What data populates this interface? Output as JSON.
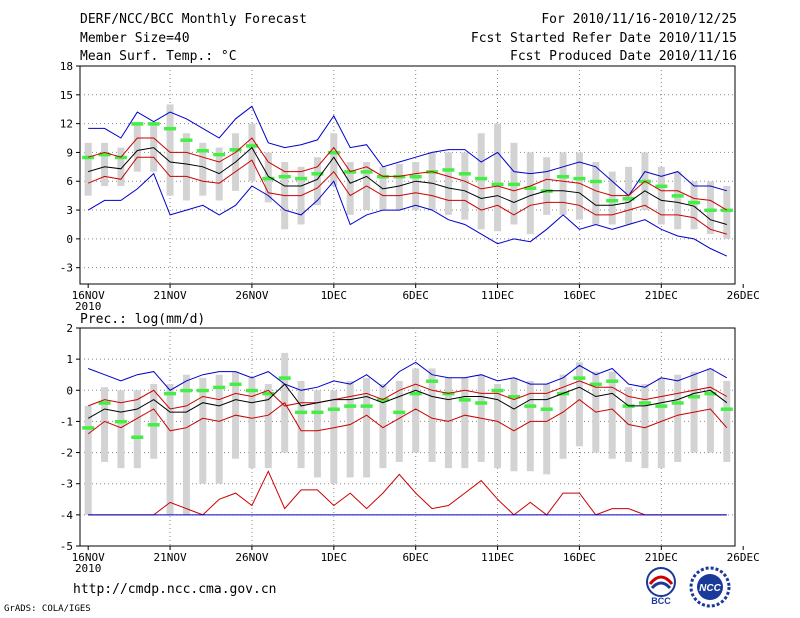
{
  "header": {
    "left": [
      "DERF/NCC/BCC Monthly Forecast",
      "Member Size=40",
      "Mean Surf. Temp.: °C"
    ],
    "right": [
      "For 2010/11/16-2010/12/25",
      "Fcst Started Refer Date 2010/11/15",
      "Fcst Produced Date 2010/11/16"
    ]
  },
  "footer": {
    "url": "http://cmdp.ncc.cma.gov.cn",
    "credit": "GrADS: COLA/IGES"
  },
  "logos": [
    {
      "name": "bcc-logo",
      "text": "BCC"
    },
    {
      "name": "ncc-logo",
      "text": "NCC"
    }
  ],
  "colors": {
    "ensemble_max": "#0000cc",
    "ensemble_min": "#0000cc",
    "upper_spread": "#cc0000",
    "lower_spread": "#cc0000",
    "ensemble_mean": "#000000",
    "observed_climate": "#44ee44",
    "boxes": "#d3d3d3",
    "grid": "#888888"
  },
  "chart_data": [
    {
      "type": "line",
      "title": "Mean Surf. Temp.: °C",
      "days": 40,
      "x_ticks": [
        "16NOV",
        "21NOV",
        "26NOV",
        "1DEC",
        "6DEC",
        "11DEC",
        "16DEC",
        "21DEC",
        "26DEC"
      ],
      "x_year_label": "2010",
      "ylim": [
        -4.7,
        18
      ],
      "yticks": [
        -3,
        0,
        3,
        6,
        9,
        12,
        15,
        18
      ],
      "series": [
        {
          "name": "max",
          "color": "blue",
          "values": [
            11.5,
            11.5,
            10.5,
            13.2,
            12.2,
            13.2,
            12.5,
            11.5,
            10.5,
            12.5,
            13.8,
            10,
            9.5,
            9.8,
            10.3,
            12.8,
            9.5,
            9.8,
            7.5,
            8,
            8.5,
            9,
            9.3,
            9.3,
            8,
            9,
            7,
            6.8,
            7,
            7.5,
            8,
            7.5,
            6,
            4.5,
            7,
            6.5,
            7,
            5.5,
            5.5,
            5
          ]
        },
        {
          "name": "upper",
          "color": "red",
          "values": [
            8.5,
            9,
            8.5,
            10.5,
            10.5,
            9,
            9,
            8.5,
            8,
            9,
            10.5,
            8,
            7,
            7,
            7.5,
            9.5,
            7,
            7.5,
            6.5,
            6.5,
            6.8,
            7,
            6.5,
            6,
            5.2,
            5.5,
            5,
            5.5,
            6.2,
            6,
            5.8,
            5,
            4.5,
            4.5,
            6,
            5,
            5,
            4.2,
            4,
            3
          ]
        },
        {
          "name": "mean",
          "color": "black",
          "values": [
            7,
            7.5,
            7.3,
            9.2,
            9.5,
            8,
            7.8,
            7.5,
            6.8,
            8,
            9.5,
            6.5,
            5.5,
            5.5,
            6.2,
            8.5,
            5.8,
            6.5,
            5.2,
            5.5,
            6,
            5.8,
            5.3,
            5,
            4.2,
            4.5,
            3.8,
            4.5,
            5,
            5,
            4.8,
            3.5,
            3.5,
            3.8,
            5,
            4,
            3.8,
            3.4,
            2,
            1.5
          ]
        },
        {
          "name": "lower",
          "color": "red",
          "values": [
            5.8,
            6.5,
            6.2,
            8.5,
            8.5,
            6.5,
            6.5,
            6,
            5.8,
            7,
            8.2,
            4.8,
            4.5,
            4.5,
            5.3,
            7,
            4.5,
            5.5,
            4.5,
            4.5,
            4.8,
            4.5,
            4,
            4,
            3,
            3.5,
            2.5,
            3.5,
            3.8,
            3.8,
            3.5,
            2.5,
            2.5,
            3,
            3.5,
            2.5,
            2.5,
            2.2,
            1,
            0.5
          ]
        },
        {
          "name": "min",
          "color": "blue",
          "values": [
            3,
            4,
            4,
            5.2,
            6.8,
            2.5,
            3,
            3.5,
            2.5,
            3.5,
            5.5,
            4.5,
            3,
            2.5,
            4,
            6,
            1.5,
            2.5,
            3,
            3,
            3.5,
            3,
            2,
            1.5,
            0.5,
            -0.5,
            0,
            -0.3,
            1,
            2.5,
            1,
            1.5,
            1,
            1.5,
            2,
            1,
            0.3,
            0,
            -1,
            -1.8
          ]
        },
        {
          "name": "green_marks",
          "color": "green",
          "values": [
            8.5,
            8.8,
            8.5,
            12,
            12,
            11.5,
            10.3,
            9.2,
            8.8,
            9.3,
            9.7,
            6.3,
            6.5,
            6.3,
            6.8,
            9,
            7,
            7,
            6.5,
            6.5,
            6.5,
            7,
            7.2,
            6.8,
            6.3,
            5.7,
            5.7,
            5.3,
            5,
            6.5,
            6.3,
            6,
            4,
            4.2,
            6,
            5.5,
            4.5,
            3.8,
            3,
            3
          ]
        },
        {
          "name": "box_high",
          "values": [
            10,
            10,
            9.5,
            12,
            12,
            14,
            11,
            10,
            9.5,
            11,
            12,
            9,
            8,
            7.5,
            8.5,
            11,
            8,
            8,
            7.5,
            7.8,
            8,
            9,
            9,
            9,
            11,
            12,
            10,
            9,
            8.5,
            9,
            9,
            8,
            7,
            7.5,
            9,
            7.5,
            7,
            6,
            6,
            5.5
          ]
        },
        {
          "name": "box_low",
          "values": [
            4.5,
            5.5,
            5.5,
            7,
            7,
            4.5,
            4,
            4.5,
            4,
            5,
            6,
            3.8,
            1,
            1.5,
            3.5,
            5.5,
            2.5,
            3,
            3,
            3,
            3,
            3,
            2.5,
            2,
            1,
            0.8,
            1.5,
            0.5,
            2.5,
            2.5,
            2,
            1.5,
            1.5,
            1.5,
            3,
            1.5,
            1,
            1,
            0.5,
            0
          ]
        }
      ]
    },
    {
      "type": "line",
      "title": "Prec.: log(mm/d)",
      "days": 40,
      "x_ticks": [
        "16NOV",
        "21NOV",
        "26NOV",
        "1DEC",
        "6DEC",
        "11DEC",
        "16DEC",
        "21DEC",
        "26DEC"
      ],
      "x_year_label": "2010",
      "ylim": [
        -5,
        2
      ],
      "yticks": [
        -5,
        -4,
        -3,
        -2,
        -1,
        0,
        1,
        2
      ],
      "series": [
        {
          "name": "max",
          "color": "blue",
          "values": [
            0.7,
            0.5,
            0.3,
            0.5,
            0.6,
            0,
            0.3,
            0.5,
            0.6,
            0.6,
            0.4,
            0.6,
            0.2,
            0,
            0.1,
            0.3,
            0.2,
            0.5,
            0.1,
            0.6,
            0.9,
            0.5,
            0.4,
            0.4,
            0.5,
            0.3,
            0.4,
            0.2,
            0.2,
            0.4,
            0.8,
            0.5,
            0.7,
            0.2,
            0.1,
            0.4,
            0.3,
            0.5,
            0.7,
            0.4
          ]
        },
        {
          "name": "upper",
          "color": "red",
          "values": [
            -0.5,
            -0.3,
            -0.4,
            -0.3,
            0,
            -0.6,
            -0.5,
            -0.2,
            -0.3,
            -0.1,
            -0.2,
            0,
            -0.5,
            -0.4,
            -0.4,
            -0.3,
            -0.2,
            -0.1,
            -0.3,
            0,
            0.2,
            0,
            -0.1,
            0,
            -0.1,
            -0.1,
            -0.3,
            -0.1,
            -0.1,
            0.1,
            0.3,
            0.1,
            0.1,
            -0.2,
            -0.3,
            -0.2,
            -0.1,
            0,
            0.1,
            -0.2
          ]
        },
        {
          "name": "mean",
          "color": "black",
          "values": [
            -0.9,
            -0.6,
            -0.7,
            -0.6,
            -0.3,
            -0.7,
            -0.7,
            -0.4,
            -0.5,
            -0.3,
            -0.4,
            -0.3,
            0.2,
            -0.5,
            -0.4,
            -0.3,
            -0.3,
            -0.2,
            -0.4,
            -0.2,
            0,
            -0.2,
            -0.3,
            -0.2,
            -0.2,
            -0.3,
            -0.6,
            -0.3,
            -0.3,
            -0.1,
            0.1,
            -0.2,
            -0.1,
            -0.5,
            -0.5,
            -0.4,
            -0.3,
            -0.1,
            0,
            -0.4
          ]
        },
        {
          "name": "lower",
          "color": "red",
          "values": [
            -1.4,
            -1,
            -1.2,
            -0.9,
            -0.6,
            -1.3,
            -1.2,
            -0.9,
            -1,
            -0.8,
            -0.9,
            -0.8,
            -0.4,
            -1.3,
            -1.3,
            -1.2,
            -1.1,
            -0.8,
            -1.2,
            -0.9,
            -0.6,
            -0.9,
            -1,
            -0.8,
            -0.9,
            -1,
            -1.3,
            -1,
            -1,
            -0.7,
            -0.3,
            -0.7,
            -0.6,
            -1.1,
            -1.2,
            -1,
            -0.8,
            -0.7,
            -0.6,
            -1.2
          ]
        },
        {
          "name": "min_red",
          "color": "red",
          "values": [
            -4,
            -4,
            -4,
            -4,
            -4,
            -3.6,
            -3.8,
            -4,
            -3.5,
            -3.3,
            -3.7,
            -2.6,
            -3.8,
            -3.2,
            -3.2,
            -3.7,
            -3.3,
            -3.8,
            -3.3,
            -2.7,
            -3.3,
            -3.8,
            -3.7,
            -3.3,
            -2.9,
            -3.5,
            -4,
            -3.6,
            -4,
            -3.3,
            -3.3,
            -4,
            -3.8,
            -3.8,
            -4,
            -4,
            -4,
            -4,
            -4,
            -4
          ]
        },
        {
          "name": "min_blue",
          "color": "blue",
          "values": [
            -4,
            -4,
            -4,
            -4,
            -4,
            -4,
            -4,
            -4,
            -4,
            -4,
            -4,
            -4,
            -4,
            -4,
            -4,
            -4,
            -4,
            -4,
            -4,
            -4,
            -4,
            -4,
            -4,
            -4,
            -4,
            -4,
            -4,
            -4,
            -4,
            -4,
            -4,
            -4,
            -4,
            -4,
            -4,
            -4,
            -4,
            -4,
            -4,
            -4
          ]
        },
        {
          "name": "green_marks",
          "color": "green",
          "values": [
            -1.2,
            -0.4,
            -1,
            -1.5,
            -1.1,
            -0.1,
            0,
            0,
            0.1,
            0.2,
            0,
            -0.1,
            0.4,
            -0.7,
            -0.7,
            -0.6,
            -0.5,
            -0.5,
            -0.3,
            -0.7,
            -0.1,
            0.3,
            -0.1,
            -0.3,
            -0.4,
            0,
            -0.2,
            -0.5,
            -0.6,
            -0.1,
            0.4,
            0.2,
            0.3,
            -0.5,
            -0.4,
            -0.5,
            -0.4,
            -0.2,
            -0.1,
            -0.6
          ]
        },
        {
          "name": "box_high",
          "values": [
            -0.5,
            0.1,
            0,
            0,
            0.2,
            0.2,
            0.5,
            0.4,
            0.5,
            0.6,
            0.4,
            0.2,
            1.2,
            0.3,
            0,
            0,
            0.3,
            0.4,
            0.2,
            0.3,
            0.7,
            0.7,
            0.4,
            0.4,
            0.5,
            0.2,
            0.4,
            0.3,
            0.2,
            0.5,
            0.9,
            0.6,
            0.6,
            0.1,
            0.2,
            0.4,
            0.5,
            0.6,
            0.7,
            0.3
          ]
        },
        {
          "name": "box_low",
          "values": [
            -4,
            -2.3,
            -2.5,
            -2.5,
            -2.2,
            -4,
            -4,
            -3,
            -3,
            -2.2,
            -2.5,
            -2.5,
            -2,
            -2.5,
            -2.8,
            -3,
            -2.8,
            -2.8,
            -2.5,
            -2.3,
            -2,
            -2.3,
            -2.5,
            -2.5,
            -2.3,
            -2.5,
            -2.6,
            -2.6,
            -2.7,
            -2.2,
            -1.8,
            -2,
            -2.2,
            -2.3,
            -2.5,
            -2.5,
            -2.3,
            -2,
            -2,
            -2.3
          ]
        }
      ]
    }
  ]
}
